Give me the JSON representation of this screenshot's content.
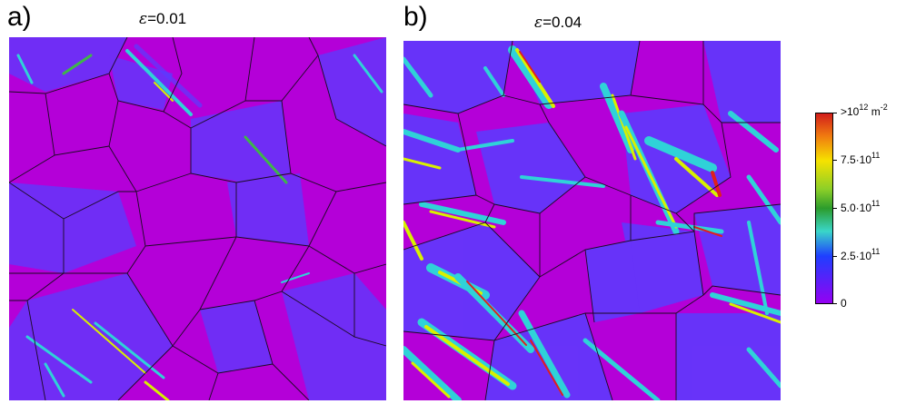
{
  "panels": [
    {
      "letter": "a)",
      "strain_symbol": "ε",
      "strain_value": "=0.01"
    },
    {
      "letter": "b)",
      "strain_symbol": "ε",
      "strain_value": "=0.04"
    }
  ],
  "colorbar": {
    "labels": [
      {
        "prefix": ">10",
        "sup": "12",
        "mid": " m",
        "sup2": "-2"
      },
      {
        "prefix": "7.5·10",
        "sup": "11",
        "mid": "",
        "sup2": ""
      },
      {
        "prefix": "5.0·10",
        "sup": "11",
        "mid": "",
        "sup2": ""
      },
      {
        "prefix": "2.5·10",
        "sup": "11",
        "mid": "",
        "sup2": ""
      },
      {
        "prefix": "0",
        "sup": "",
        "mid": "",
        "sup2": ""
      }
    ],
    "colors": [
      "#d11b1b",
      "#f6e200",
      "#2c9c2c",
      "#1f3fff",
      "#9600f2"
    ]
  },
  "map_colors": {
    "background": "#b400d8",
    "blue": "#5a3cff",
    "cyan": "#2fd2d8",
    "green": "#3fb54a",
    "yellow": "#d8f000",
    "red": "#e0201c",
    "boundary": "#1a0a20"
  }
}
